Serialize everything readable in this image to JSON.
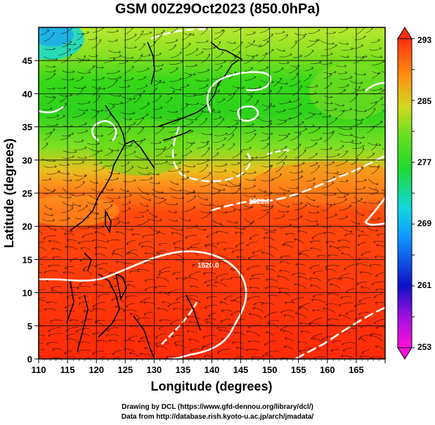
{
  "title": "GSM 00Z29Oct2023 (850.0hPa)",
  "axes": {
    "xlabel": "Longitude (degrees)",
    "ylabel": "Latitude  (degrees)",
    "xticks": [
      110,
      115,
      120,
      125,
      130,
      135,
      140,
      145,
      150,
      155,
      160,
      165
    ],
    "yticks": [
      0,
      5,
      10,
      15,
      20,
      25,
      30,
      35,
      40,
      45
    ],
    "xlim": [
      110,
      170
    ],
    "ylim": [
      0,
      50
    ]
  },
  "colorbar": {
    "labels": [
      "293",
      "285",
      "277",
      "269",
      "261",
      "253"
    ],
    "min": 253,
    "max": 293
  },
  "contour_labels": [
    "1520.0",
    "1520.0"
  ],
  "credits": {
    "line1": "Drawing by DCL (https://www.gfd-dennou.org/library/dcl/)",
    "line2": "Data from http://database.rish.kyoto-u.ac.jp/arch/jmadata/"
  }
}
